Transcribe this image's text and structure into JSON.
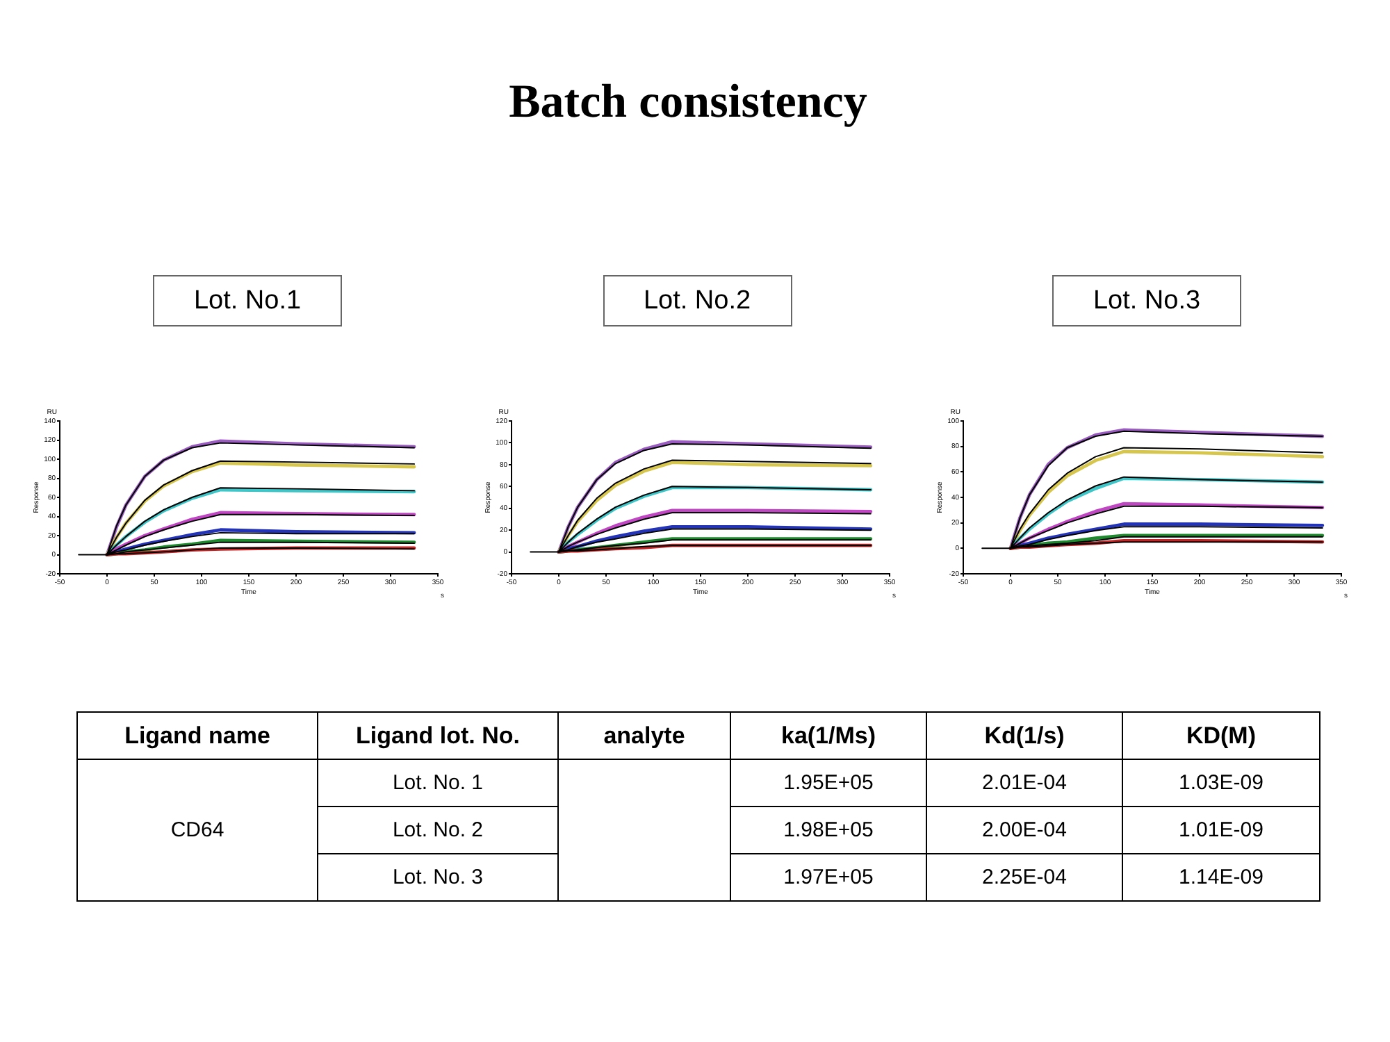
{
  "chart_data": [
    {
      "type": "other",
      "title": "Batch consistency"
    },
    {
      "type": "line",
      "title": "Lot. No.1",
      "xlabel": "Time",
      "ylabel": "Response",
      "annotations": [
        "RU",
        "s"
      ],
      "x": [
        0,
        10,
        20,
        40,
        60,
        90,
        120,
        200,
        325
      ],
      "xlim": [
        -50,
        350
      ],
      "xticks": [
        -50,
        0,
        50,
        100,
        150,
        200,
        250,
        300,
        350
      ],
      "ylim": [
        -20,
        140
      ],
      "yticks": [
        -20,
        0,
        20,
        40,
        60,
        80,
        100,
        120,
        140
      ],
      "series": [
        {
          "color": "#9a5cc0",
          "values": [
            0,
            29,
            52,
            82,
            99,
            113,
            119,
            116,
            113
          ]
        },
        {
          "color": "#d6c64e",
          "values": [
            0,
            18,
            33,
            56,
            72,
            87,
            96,
            94,
            92
          ]
        },
        {
          "color": "#3ec6c8",
          "values": [
            0,
            10,
            19,
            34,
            46,
            59,
            68,
            67,
            66
          ]
        },
        {
          "color": "#c046c4",
          "values": [
            0,
            6,
            11,
            20,
            27,
            37,
            44,
            43,
            42
          ]
        },
        {
          "color": "#2434b8",
          "values": [
            0,
            3,
            6,
            11,
            15,
            21,
            26,
            24,
            23
          ]
        },
        {
          "color": "#1e8a2e",
          "values": [
            0,
            1,
            3,
            5,
            8,
            11,
            15,
            14,
            13
          ]
        },
        {
          "color": "#c42424",
          "values": [
            0,
            1,
            1,
            2,
            3,
            5,
            6,
            7,
            7
          ]
        },
        {
          "type": "line",
          "color": "#000000",
          "x": [
            -30,
            0,
            10,
            20,
            40,
            60,
            90,
            120,
            200,
            325
          ],
          "values": [
            0,
            0,
            30,
            52,
            82,
            99,
            112,
            117,
            115,
            112
          ]
        },
        {
          "type": "line",
          "color": "#000000",
          "x": [
            0,
            10,
            20,
            40,
            60,
            90,
            120,
            200,
            325
          ],
          "values": [
            0,
            18,
            33,
            57,
            73,
            88,
            98,
            97,
            95
          ]
        },
        {
          "type": "line",
          "color": "#000000",
          "x": [
            0,
            10,
            20,
            40,
            60,
            90,
            120,
            200,
            325
          ],
          "values": [
            0,
            10,
            19,
            35,
            47,
            60,
            70,
            69,
            67
          ]
        },
        {
          "type": "line",
          "color": "#000000",
          "x": [
            0,
            10,
            20,
            40,
            60,
            90,
            120,
            200,
            325
          ],
          "values": [
            0,
            5,
            10,
            19,
            26,
            35,
            42,
            42,
            41
          ]
        },
        {
          "type": "line",
          "color": "#000000",
          "x": [
            0,
            10,
            20,
            40,
            60,
            90,
            120,
            200,
            325
          ],
          "values": [
            0,
            3,
            5,
            10,
            14,
            19,
            23,
            22,
            22
          ]
        },
        {
          "type": "line",
          "color": "#000000",
          "x": [
            0,
            10,
            20,
            40,
            60,
            90,
            120,
            200,
            325
          ],
          "values": [
            0,
            1,
            3,
            5,
            7,
            10,
            13,
            13,
            12
          ]
        },
        {
          "type": "line",
          "color": "#000000",
          "x": [
            0,
            10,
            20,
            40,
            60,
            90,
            120,
            200,
            325
          ],
          "values": [
            0,
            1,
            1,
            2,
            3,
            5,
            7,
            7,
            6
          ]
        }
      ]
    },
    {
      "type": "line",
      "title": "Lot. No.2",
      "xlabel": "Time",
      "ylabel": "Response",
      "annotations": [
        "RU",
        "s"
      ],
      "x": [
        0,
        10,
        20,
        40,
        60,
        90,
        120,
        200,
        330
      ],
      "xlim": [
        -50,
        350
      ],
      "xticks": [
        -50,
        0,
        50,
        100,
        150,
        200,
        250,
        300,
        350
      ],
      "ylim": [
        -20,
        120
      ],
      "yticks": [
        -20,
        0,
        20,
        40,
        60,
        80,
        100,
        120
      ],
      "series": [
        {
          "color": "#9a5cc0",
          "values": [
            0,
            23,
            41,
            66,
            82,
            94,
            101,
            99,
            96
          ]
        },
        {
          "color": "#d6c64e",
          "values": [
            0,
            15,
            28,
            47,
            61,
            74,
            82,
            80,
            79
          ]
        },
        {
          "color": "#3ec6c8",
          "values": [
            0,
            9,
            16,
            29,
            40,
            51,
            59,
            59,
            57
          ]
        },
        {
          "color": "#c046c4",
          "values": [
            0,
            5,
            9,
            17,
            24,
            32,
            38,
            38,
            37
          ]
        },
        {
          "color": "#2434b8",
          "values": [
            0,
            3,
            5,
            10,
            14,
            19,
            23,
            23,
            21
          ]
        },
        {
          "color": "#1e8a2e",
          "values": [
            0,
            1,
            2,
            4,
            6,
            9,
            12,
            12,
            12
          ]
        },
        {
          "color": "#c42424",
          "values": [
            0,
            1,
            1,
            2,
            3,
            4,
            6,
            6,
            6
          ]
        },
        {
          "type": "line",
          "color": "#000000",
          "x": [
            -30,
            0,
            10,
            20,
            40,
            60,
            90,
            120,
            200,
            330
          ],
          "values": [
            0,
            0,
            23,
            41,
            66,
            81,
            93,
            99,
            98,
            95
          ]
        },
        {
          "type": "line",
          "color": "#000000",
          "x": [
            0,
            10,
            20,
            40,
            60,
            90,
            120,
            200,
            330
          ],
          "values": [
            0,
            15,
            29,
            49,
            63,
            76,
            84,
            83,
            81
          ]
        },
        {
          "type": "line",
          "color": "#000000",
          "x": [
            0,
            10,
            20,
            40,
            60,
            90,
            120,
            200,
            330
          ],
          "values": [
            0,
            9,
            17,
            30,
            41,
            52,
            60,
            59,
            57
          ]
        },
        {
          "type": "line",
          "color": "#000000",
          "x": [
            0,
            10,
            20,
            40,
            60,
            90,
            120,
            200,
            330
          ],
          "values": [
            0,
            5,
            9,
            16,
            22,
            30,
            36,
            36,
            35
          ]
        },
        {
          "type": "line",
          "color": "#000000",
          "x": [
            0,
            10,
            20,
            40,
            60,
            90,
            120,
            200,
            330
          ],
          "values": [
            0,
            2,
            5,
            9,
            12,
            17,
            21,
            21,
            20
          ]
        },
        {
          "type": "line",
          "color": "#000000",
          "x": [
            0,
            10,
            20,
            40,
            60,
            90,
            120,
            200,
            330
          ],
          "values": [
            0,
            1,
            2,
            4,
            6,
            8,
            11,
            11,
            11
          ]
        },
        {
          "type": "line",
          "color": "#000000",
          "x": [
            0,
            10,
            20,
            40,
            60,
            90,
            120,
            200,
            330
          ],
          "values": [
            0,
            1,
            1,
            2,
            3,
            5,
            6,
            6,
            6
          ]
        }
      ]
    },
    {
      "type": "line",
      "title": "Lot. No.3",
      "xlabel": "Time",
      "ylabel": "Response",
      "annotations": [
        "RU",
        "s"
      ],
      "x": [
        0,
        10,
        20,
        40,
        60,
        90,
        120,
        200,
        330
      ],
      "xlim": [
        -50,
        350
      ],
      "xticks": [
        -50,
        0,
        50,
        100,
        150,
        200,
        250,
        300,
        350
      ],
      "ylim": [
        -20,
        100
      ],
      "yticks": [
        -20,
        0,
        20,
        40,
        60,
        80,
        100
      ],
      "series": [
        {
          "color": "#9a5cc0",
          "values": [
            0,
            24,
            42,
            66,
            79,
            89,
            93,
            91,
            88
          ]
        },
        {
          "color": "#d6c64e",
          "values": [
            0,
            14,
            26,
            44,
            57,
            69,
            76,
            75,
            72
          ]
        },
        {
          "color": "#3ec6c8",
          "values": [
            0,
            8,
            15,
            27,
            37,
            47,
            55,
            54,
            52
          ]
        },
        {
          "color": "#c046c4",
          "values": [
            0,
            4,
            8,
            15,
            21,
            29,
            35,
            34,
            32
          ]
        },
        {
          "color": "#2434b8",
          "values": [
            0,
            2,
            4,
            8,
            11,
            15,
            19,
            19,
            18
          ]
        },
        {
          "color": "#1e8a2e",
          "values": [
            0,
            1,
            2,
            4,
            5,
            8,
            10,
            10,
            10
          ]
        },
        {
          "color": "#c42424",
          "values": [
            0,
            1,
            1,
            2,
            3,
            4,
            6,
            6,
            5
          ]
        },
        {
          "type": "line",
          "color": "#000000",
          "x": [
            -30,
            0,
            10,
            20,
            40,
            60,
            90,
            120,
            200,
            330
          ],
          "values": [
            0,
            0,
            24,
            42,
            65,
            79,
            88,
            92,
            90,
            88
          ]
        },
        {
          "type": "line",
          "color": "#000000",
          "x": [
            0,
            10,
            20,
            40,
            60,
            90,
            120,
            200,
            330
          ],
          "values": [
            0,
            15,
            27,
            46,
            59,
            72,
            79,
            78,
            75
          ]
        },
        {
          "type": "line",
          "color": "#000000",
          "x": [
            0,
            10,
            20,
            40,
            60,
            90,
            120,
            200,
            330
          ],
          "values": [
            0,
            8,
            16,
            28,
            38,
            49,
            56,
            54,
            52
          ]
        },
        {
          "type": "line",
          "color": "#000000",
          "x": [
            0,
            10,
            20,
            40,
            60,
            90,
            120,
            200,
            330
          ],
          "values": [
            0,
            4,
            8,
            14,
            20,
            27,
            33,
            33,
            32
          ]
        },
        {
          "type": "line",
          "color": "#000000",
          "x": [
            0,
            10,
            20,
            40,
            60,
            90,
            120,
            200,
            330
          ],
          "values": [
            0,
            2,
            3,
            7,
            10,
            14,
            17,
            17,
            16
          ]
        },
        {
          "type": "line",
          "color": "#000000",
          "x": [
            0,
            10,
            20,
            40,
            60,
            90,
            120,
            200,
            330
          ],
          "values": [
            0,
            1,
            2,
            3,
            4,
            6,
            9,
            9,
            9
          ]
        },
        {
          "type": "line",
          "color": "#000000",
          "x": [
            0,
            10,
            20,
            40,
            60,
            90,
            120,
            200,
            330
          ],
          "values": [
            0,
            1,
            1,
            2,
            3,
            4,
            5,
            5,
            5
          ]
        }
      ]
    },
    {
      "type": "other",
      "categories": [
        "Ligand name",
        "Ligand lot. No.",
        "analyte",
        "ka(1/Ms)",
        "Kd(1/s)",
        "KD(M)"
      ],
      "annotations": [
        "CD64",
        "Lot. No. 1",
        "1.95E+05",
        "2.01E-04",
        "1.03E-09",
        "Lot. No. 2",
        "1.98E+05",
        "2.00E-04",
        "1.01E-09",
        "Lot. No. 3",
        "1.97E+05",
        "2.25E-04",
        "1.14E-09"
      ]
    }
  ]
}
